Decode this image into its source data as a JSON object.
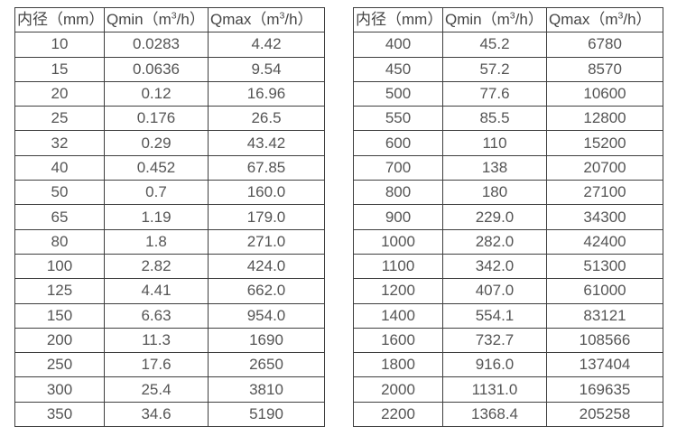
{
  "colors": {
    "background": "#ffffff",
    "border": "#3f3f3f",
    "header_text": "#454545",
    "cell_text": "#555555"
  },
  "tables": [
    {
      "title": "small-diameter-flow-rates",
      "headers": [
        {
          "pre": "内径（mm）",
          "sup": "",
          "post": ""
        },
        {
          "pre": "Qmin（m",
          "sup": "3",
          "post": "/h）"
        },
        {
          "pre": "Qmax（m",
          "sup": "3",
          "post": "/h）"
        }
      ],
      "rows": [
        [
          "10",
          "0.0283",
          "4.42"
        ],
        [
          "15",
          "0.0636",
          "9.54"
        ],
        [
          "20",
          "0.12",
          "16.96"
        ],
        [
          "25",
          "0.176",
          "26.5"
        ],
        [
          "32",
          "0.29",
          "43.42"
        ],
        [
          "40",
          "0.452",
          "67.85"
        ],
        [
          "50",
          "0.7",
          "160.0"
        ],
        [
          "65",
          "1.19",
          "179.0"
        ],
        [
          "80",
          "1.8",
          "271.0"
        ],
        [
          "100",
          "2.82",
          "424.0"
        ],
        [
          "125",
          "4.41",
          "662.0"
        ],
        [
          "150",
          "6.63",
          "954.0"
        ],
        [
          "200",
          "11.3",
          "1690"
        ],
        [
          "250",
          "17.6",
          "2650"
        ],
        [
          "300",
          "25.4",
          "3810"
        ],
        [
          "350",
          "34.6",
          "5190"
        ]
      ]
    },
    {
      "title": "large-diameter-flow-rates",
      "headers": [
        {
          "pre": "内径（mm）",
          "sup": "",
          "post": ""
        },
        {
          "pre": "Qmin（m",
          "sup": "3",
          "post": "/h）"
        },
        {
          "pre": "Qmax（m",
          "sup": "3",
          "post": "/h）"
        }
      ],
      "rows": [
        [
          "400",
          "45.2",
          "6780"
        ],
        [
          "450",
          "57.2",
          "8570"
        ],
        [
          "500",
          "77.6",
          "10600"
        ],
        [
          "550",
          "85.5",
          "12800"
        ],
        [
          "600",
          "110",
          "15200"
        ],
        [
          "700",
          "138",
          "20700"
        ],
        [
          "800",
          "180",
          "27100"
        ],
        [
          "900",
          "229.0",
          "34300"
        ],
        [
          "1000",
          "282.0",
          "42400"
        ],
        [
          "1100",
          "342.0",
          "51300"
        ],
        [
          "1200",
          "407.0",
          "61000"
        ],
        [
          "1400",
          "554.1",
          "83121"
        ],
        [
          "1600",
          "732.7",
          "108566"
        ],
        [
          "1800",
          "916.0",
          "137404"
        ],
        [
          "2000",
          "1131.0",
          "169635"
        ],
        [
          "2200",
          "1368.4",
          "205258"
        ]
      ]
    }
  ]
}
